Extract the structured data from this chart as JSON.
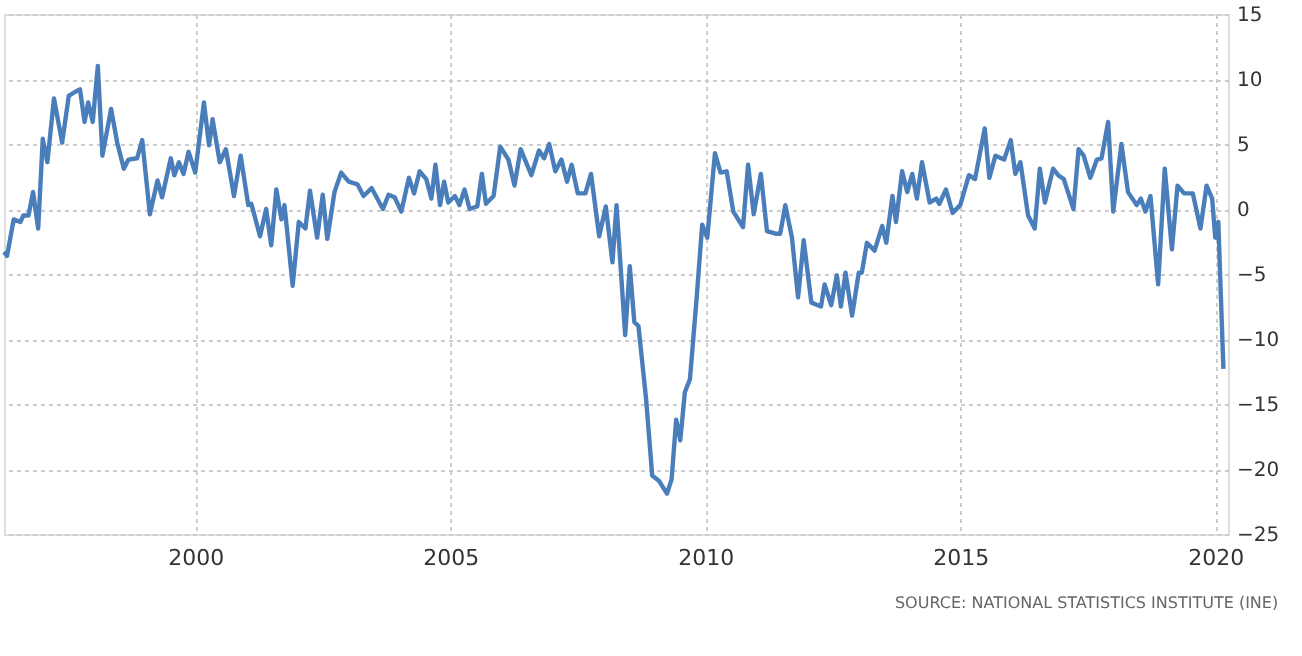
{
  "chart_data": {
    "type": "line",
    "x": [
      1996.25,
      1996.31,
      1996.44,
      1996.57,
      1996.63,
      1996.73,
      1996.82,
      1996.92,
      1997.01,
      1997.1,
      1997.23,
      1997.39,
      1997.52,
      1997.64,
      1997.74,
      1997.83,
      1997.9,
      1997.99,
      1998.09,
      1998.18,
      1998.35,
      1998.47,
      1998.6,
      1998.69,
      1998.86,
      1998.96,
      1999.11,
      1999.26,
      1999.35,
      1999.52,
      1999.59,
      1999.68,
      1999.77,
      1999.87,
      2000.0,
      2000.17,
      2000.27,
      2000.34,
      2000.48,
      2000.6,
      2000.76,
      2000.89,
      2001.04,
      2001.1,
      2001.27,
      2001.39,
      2001.49,
      2001.59,
      2001.69,
      2001.75,
      2001.91,
      2002.03,
      2002.16,
      2002.25,
      2002.39,
      2002.5,
      2002.59,
      2002.73,
      2002.86,
      2003.01,
      2003.18,
      2003.3,
      2003.46,
      2003.68,
      2003.79,
      2003.91,
      2004.04,
      2004.19,
      2004.29,
      2004.4,
      2004.53,
      2004.63,
      2004.71,
      2004.8,
      2004.88,
      2004.96,
      2005.09,
      2005.18,
      2005.28,
      2005.38,
      2005.53,
      2005.62,
      2005.7,
      2005.85,
      2005.98,
      2006.14,
      2006.26,
      2006.38,
      2006.59,
      2006.74,
      2006.84,
      2006.94,
      2007.06,
      2007.18,
      2007.29,
      2007.38,
      2007.5,
      2007.65,
      2007.76,
      2007.92,
      2008.05,
      2008.18,
      2008.26,
      2008.43,
      2008.52,
      2008.61,
      2008.69,
      2008.84,
      2008.96,
      2009.09,
      2009.25,
      2009.34,
      2009.43,
      2009.51,
      2009.6,
      2009.7,
      2009.83,
      2009.94,
      2010.04,
      2010.19,
      2010.3,
      2010.42,
      2010.55,
      2010.74,
      2010.84,
      2010.95,
      2011.09,
      2011.21,
      2011.38,
      2011.47,
      2011.57,
      2011.7,
      2011.82,
      2011.93,
      2012.08,
      2012.27,
      2012.34,
      2012.47,
      2012.58,
      2012.66,
      2012.75,
      2012.88,
      2013.01,
      2013.07,
      2013.17,
      2013.32,
      2013.47,
      2013.55,
      2013.67,
      2013.74,
      2013.86,
      2013.96,
      2014.06,
      2014.15,
      2014.25,
      2014.4,
      2014.53,
      2014.59,
      2014.72,
      2014.85,
      2015.0,
      2015.17,
      2015.29,
      2015.48,
      2015.57,
      2015.69,
      2015.86,
      2015.99,
      2016.08,
      2016.18,
      2016.33,
      2016.46,
      2016.56,
      2016.66,
      2016.82,
      2016.92,
      2017.03,
      2017.22,
      2017.32,
      2017.42,
      2017.55,
      2017.68,
      2017.77,
      2017.9,
      2018.0,
      2018.16,
      2018.29,
      2018.46,
      2018.54,
      2018.63,
      2018.73,
      2018.88,
      2019.01,
      2019.15,
      2019.26,
      2019.39,
      2019.56,
      2019.71,
      2019.83,
      2019.94,
      2020.0,
      2020.06,
      2020.16
    ],
    "values": [
      -3.3,
      -3.6,
      -0.8,
      -1.0,
      -0.5,
      -0.5,
      1.3,
      -1.5,
      5.4,
      3.6,
      8.5,
      5.1,
      8.7,
      9.0,
      9.2,
      6.7,
      8.2,
      6.7,
      11.0,
      4.1,
      7.7,
      5.1,
      3.1,
      3.8,
      3.9,
      5.3,
      -0.4,
      2.2,
      0.9,
      3.9,
      2.6,
      3.6,
      2.7,
      4.4,
      2.8,
      8.2,
      4.9,
      6.9,
      3.6,
      4.6,
      1.0,
      4.1,
      0.3,
      0.4,
      -2.1,
      0.0,
      -2.8,
      1.5,
      -0.8,
      0.3,
      -5.9,
      -1.0,
      -1.5,
      1.4,
      -2.2,
      1.1,
      -2.3,
      1.3,
      2.8,
      2.1,
      1.9,
      1.0,
      1.6,
      0.0,
      1.1,
      0.9,
      -0.2,
      2.4,
      1.2,
      2.9,
      2.3,
      0.8,
      3.4,
      0.3,
      2.1,
      0.5,
      1.0,
      0.3,
      1.5,
      0.0,
      0.2,
      2.7,
      0.4,
      1.0,
      4.8,
      3.8,
      1.8,
      4.6,
      2.6,
      4.5,
      3.9,
      5.0,
      2.9,
      3.8,
      2.1,
      3.4,
      1.2,
      1.2,
      2.7,
      -2.1,
      0.2,
      -4.1,
      0.3,
      -9.7,
      -4.4,
      -8.7,
      -9.0,
      -14.6,
      -20.5,
      -20.9,
      -21.9,
      -20.8,
      -16.2,
      -17.8,
      -14.1,
      -13.1,
      -6.9,
      -1.2,
      -2.2,
      4.3,
      2.8,
      2.9,
      -0.2,
      -1.4,
      3.4,
      -0.4,
      2.7,
      -1.7,
      -1.9,
      -1.9,
      0.3,
      -2.2,
      -6.8,
      -2.4,
      -7.2,
      -7.5,
      -5.8,
      -7.4,
      -5.1,
      -7.5,
      -4.9,
      -8.2,
      -4.9,
      -4.9,
      -2.6,
      -3.2,
      -1.3,
      -2.6,
      1.0,
      -1.0,
      2.9,
      1.3,
      2.7,
      0.8,
      3.6,
      0.5,
      0.8,
      0.4,
      1.5,
      -0.3,
      0.3,
      2.6,
      2.3,
      6.2,
      2.4,
      4.1,
      3.8,
      5.3,
      2.7,
      3.6,
      -0.5,
      -1.5,
      3.1,
      0.5,
      3.1,
      2.6,
      2.3,
      0.0,
      4.6,
      4.1,
      2.4,
      3.8,
      3.9,
      6.7,
      -0.2,
      5.0,
      1.3,
      0.3,
      0.8,
      -0.2,
      1.0,
      -5.8,
      3.1,
      -3.1,
      1.8,
      1.2,
      1.2,
      -1.5,
      1.8,
      0.8,
      -2.2,
      -1.0,
      -12.3
    ],
    "color": "#4a7ebb",
    "xlim": [
      1996.25,
      2020.25
    ],
    "xticks": [
      2000,
      2005,
      2010,
      2015,
      2020
    ],
    "ylim": [
      -25,
      15
    ],
    "yticks": [
      -25,
      -20,
      -15,
      -10,
      -5,
      0,
      5,
      10,
      15
    ],
    "grid": true,
    "marker": "none",
    "line_style": "solid",
    "annotations": [
      "SOURCE: NATIONAL STATISTICS INSTITUTE (INE)"
    ]
  }
}
